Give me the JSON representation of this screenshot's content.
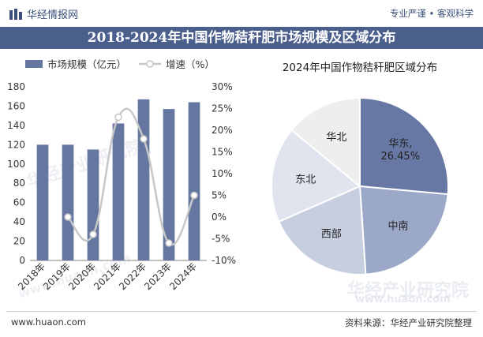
{
  "header": {
    "brand": "华经情报网",
    "slogan": "专业严谨 • 客观科学",
    "title": "2018-2024年中国作物秸秆肥市场规模及区域分布"
  },
  "footer": {
    "website": "www.huaon.com",
    "source": "资料来源：华经产业研究院整理"
  },
  "watermarks": [
    "华经产业研究院",
    "www.huaon.com",
    "华经产业研究院",
    "www.huaon.com"
  ],
  "colors": {
    "bar": "#6576a0",
    "line": "#c7c7c7",
    "band": "#4b5f8d"
  },
  "chart_data": [
    {
      "type": "bar",
      "categories": [
        "2018年",
        "2019年",
        "2020年",
        "2021年",
        "2022年",
        "2023年",
        "2024年"
      ],
      "series": [
        {
          "name": "市场规模（亿元）",
          "type": "bar",
          "axis": "left",
          "values": [
            120,
            120,
            115,
            142,
            167,
            157,
            164
          ]
        },
        {
          "name": "增速（%）",
          "type": "line",
          "axis": "right",
          "values": [
            null,
            0,
            -4,
            23,
            18,
            -6,
            5
          ]
        }
      ],
      "yleft": {
        "min": 0,
        "max": 180,
        "ticks": [
          0,
          20,
          40,
          60,
          80,
          100,
          120,
          140,
          160,
          180
        ]
      },
      "yright": {
        "min": -10,
        "max": 30,
        "ticks": [
          "-10%",
          "-5%",
          "0%",
          "5%",
          "10%",
          "15%",
          "20%",
          "25%",
          "30%"
        ]
      },
      "legend": "top-left"
    },
    {
      "type": "pie",
      "title": "2024年中国作物秸秆肥区域分布",
      "slices": [
        {
          "label": "华东",
          "value": 26.45,
          "display": "华东,\n26.45%",
          "color": "#6778a4"
        },
        {
          "label": "中南",
          "value": 22.5,
          "display": "中南",
          "color": "#9ba8c8"
        },
        {
          "label": "西部",
          "value": 19.5,
          "display": "西部",
          "color": "#c6cedf"
        },
        {
          "label": "东北",
          "value": 17.5,
          "display": "东北",
          "color": "#dfe4ee"
        },
        {
          "label": "华北",
          "value": 14.05,
          "display": "华北",
          "color": "#eeeeef"
        }
      ]
    }
  ]
}
